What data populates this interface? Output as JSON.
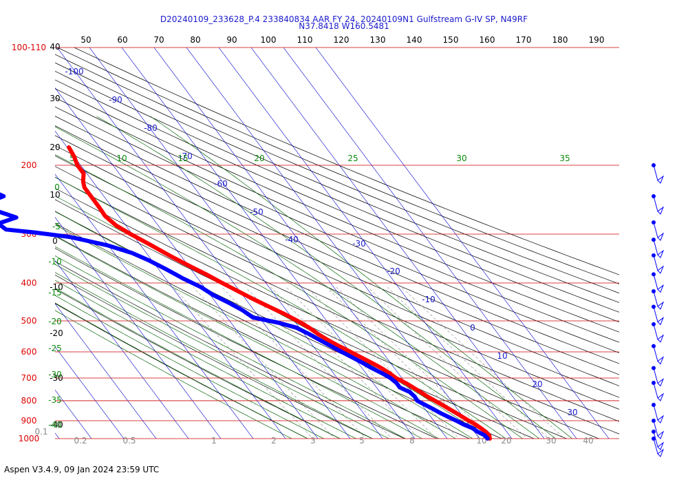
{
  "header": {
    "line1": "D20240109_233628_P.4 233840834 AAR FY 24, 20240109N1 Gulfstream G-IV SP, N49RF",
    "line2": "N37.8418 W160.5481"
  },
  "footer": "Aspen V3.4.9, 09 Jan 2024  23:59 UTC",
  "colors": {
    "temperature": "#ff0000",
    "dewpoint": "#0000ff",
    "isobars": "#cc0000",
    "isotherms": "#0000cc",
    "dry_adiabats": "#000000",
    "moist_adiabats": "#006400",
    "mixing_ratio": "#888888"
  },
  "chart_data": {
    "type": "line",
    "diagram": "skew-t log-p",
    "pressure_range_hPa": [
      100,
      1000
    ],
    "pressure_tick_labels": [
      "100-110",
      "200",
      "300",
      "400",
      "500",
      "600",
      "700",
      "800",
      "900",
      "1000"
    ],
    "pressure_levels": [
      100,
      200,
      300,
      400,
      500,
      600,
      700,
      800,
      900,
      1000
    ],
    "top_scale_labels": [
      "50",
      "60",
      "70",
      "80",
      "90",
      "100",
      "110",
      "120",
      "130",
      "140",
      "150",
      "160",
      "170",
      "180",
      "190"
    ],
    "left_scale_labels": [
      "40",
      "30",
      "20",
      "10",
      "0",
      "-10",
      "-20",
      "-30",
      "-40"
    ],
    "isotherm_labels": [
      "-100",
      "-90",
      "-80",
      "-70",
      "-60",
      "-50",
      "-40",
      "-30",
      "-20",
      "-10",
      "0",
      "10",
      "20",
      "30"
    ],
    "moist_adiabat_labels": [
      "5",
      "10",
      "15",
      "20",
      "25",
      "30",
      "35",
      "0",
      "-5",
      "-10",
      "-15",
      "-20",
      "-25",
      "-30",
      "-35",
      "-40"
    ],
    "mixing_ratio_labels": [
      "0.1",
      "0.2",
      "0.5",
      "1",
      "2",
      "3",
      "5",
      "8",
      "10",
      "20",
      "30",
      "40"
    ],
    "series": [
      {
        "name": "",
        "points": [
          [
            1000,
            13.2
          ],
          [
            980,
            13.8
          ],
          [
            960,
            13.5
          ],
          [
            940,
            12.8
          ],
          [
            920,
            12.0
          ],
          [
            900,
            10.8
          ],
          [
            880,
            9.8
          ],
          [
            860,
            8.7
          ],
          [
            840,
            7.5
          ],
          [
            820,
            6.3
          ],
          [
            800,
            5.0
          ],
          [
            780,
            3.6
          ],
          [
            760,
            2.5
          ],
          [
            740,
            1.3
          ],
          [
            720,
            0.0
          ],
          [
            700,
            -1.8
          ],
          [
            680,
            -2.7
          ],
          [
            660,
            -4.0
          ],
          [
            640,
            -5.8
          ],
          [
            620,
            -7.8
          ],
          [
            600,
            -9.8
          ],
          [
            580,
            -12.0
          ],
          [
            560,
            -14.0
          ],
          [
            540,
            -15.7
          ],
          [
            520,
            -17.0
          ],
          [
            500,
            -19.0
          ],
          [
            480,
            -21.5
          ],
          [
            460,
            -24.5
          ],
          [
            440,
            -27.6
          ],
          [
            420,
            -30.5
          ],
          [
            400,
            -33.5
          ],
          [
            380,
            -36.5
          ],
          [
            360,
            -40.0
          ],
          [
            340,
            -43.5
          ],
          [
            320,
            -46.8
          ],
          [
            300,
            -50.5
          ],
          [
            285,
            -53.0
          ],
          [
            270,
            -54.2
          ],
          [
            255,
            -54.0
          ],
          [
            240,
            -54.0
          ],
          [
            228,
            -54.0
          ],
          [
            220,
            -53.0
          ],
          [
            210,
            -51.0
          ],
          [
            200,
            -51.0
          ],
          [
            190,
            -50.0
          ],
          [
            180,
            -49.5
          ]
        ]
      },
      {
        "name": "",
        "points": [
          [
            1000,
            12.5
          ],
          [
            980,
            12.3
          ],
          [
            960,
            11.0
          ],
          [
            940,
            10.2
          ],
          [
            920,
            8.3
          ],
          [
            900,
            7.0
          ],
          [
            880,
            5.4
          ],
          [
            860,
            3.8
          ],
          [
            840,
            2.5
          ],
          [
            820,
            1.0
          ],
          [
            800,
            -0.5
          ],
          [
            780,
            -0.3
          ],
          [
            760,
            -0.8
          ],
          [
            740,
            -2.8
          ],
          [
            720,
            -2.8
          ],
          [
            700,
            -3.5
          ],
          [
            680,
            -5.0
          ],
          [
            660,
            -7.0
          ],
          [
            640,
            -8.6
          ],
          [
            620,
            -10.5
          ],
          [
            600,
            -12.5
          ],
          [
            580,
            -14.5
          ],
          [
            560,
            -16.5
          ],
          [
            540,
            -18.5
          ],
          [
            520,
            -21.0
          ],
          [
            505,
            -25.5
          ],
          [
            490,
            -32.0
          ],
          [
            470,
            -33.5
          ],
          [
            450,
            -36.0
          ],
          [
            430,
            -39.0
          ],
          [
            410,
            -41.0
          ],
          [
            390,
            -44.5
          ],
          [
            370,
            -47.5
          ],
          [
            350,
            -51.0
          ],
          [
            335,
            -54.5
          ],
          [
            320,
            -60.5
          ],
          [
            305,
            -70.0
          ],
          [
            297,
            -80.0
          ],
          [
            292,
            -88.0
          ],
          [
            282,
            -89.0
          ],
          [
            272,
            -82.0
          ],
          [
            263,
            -86.0
          ],
          [
            255,
            -89.0
          ],
          [
            247,
            -86.0
          ],
          [
            240,
            -81.0
          ],
          [
            234,
            -83.0
          ],
          [
            228,
            -88.0
          ],
          [
            223,
            -93.0
          ],
          [
            218,
            -91.0
          ]
        ]
      }
    ],
    "wind_barb_levels": [
      200,
      240,
      280,
      310,
      340,
      380,
      420,
      460,
      510,
      580,
      660,
      720,
      820,
      900,
      960,
      1000
    ]
  }
}
